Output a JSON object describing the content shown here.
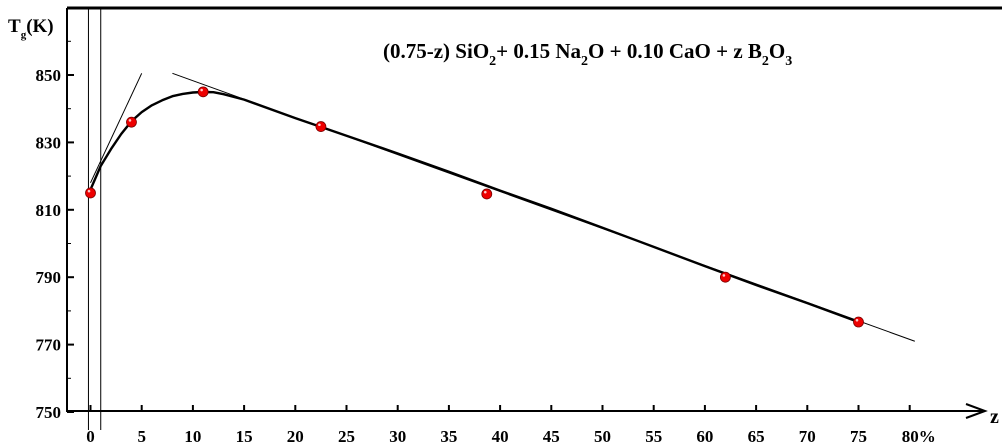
{
  "chart_data": {
    "type": "scatter",
    "title": {
      "prefix": "(0.75-z) SiO",
      "sub1": "2",
      "mid1": "+ 0.15 Na",
      "sub2": "2",
      "mid2": "O + 0.10 CaO + z B",
      "sub3": "2",
      "mid3": "O",
      "sub4": "3"
    },
    "ylabel": {
      "main": "T",
      "sub": "g",
      "unit": "(K)"
    },
    "xlabel": "z",
    "x_ticks": [
      "0",
      "5",
      "10",
      "15",
      "20",
      "25",
      "30",
      "35",
      "40",
      "45",
      "50",
      "55",
      "60",
      "65",
      "70",
      "75",
      "80%"
    ],
    "y_ticks": [
      "750",
      "770",
      "790",
      "810",
      "830",
      "850"
    ],
    "xlim": [
      -1,
      85
    ],
    "ylim": [
      750,
      870
    ],
    "points": [
      {
        "x": 0,
        "y": 815
      },
      {
        "x": 4,
        "y": 836
      },
      {
        "x": 11,
        "y": 845
      },
      {
        "x": 22.5,
        "y": 834.7
      },
      {
        "x": 38.7,
        "y": 814.7
      },
      {
        "x": 62,
        "y": 790
      },
      {
        "x": 75,
        "y": 776.7
      }
    ],
    "fit_curve": [
      [
        0,
        816
      ],
      [
        1,
        823
      ],
      [
        2,
        828
      ],
      [
        3,
        832.5
      ],
      [
        4,
        836.3
      ],
      [
        5,
        839
      ],
      [
        6,
        841
      ],
      [
        7,
        842.5
      ],
      [
        8,
        843.7
      ],
      [
        9,
        844.4
      ],
      [
        10,
        844.8
      ],
      [
        11,
        844.95
      ],
      [
        12,
        844.9
      ],
      [
        13,
        844.3
      ],
      [
        15,
        842.7
      ],
      [
        20,
        837.2
      ],
      [
        25,
        832
      ],
      [
        30,
        826.7
      ],
      [
        35,
        821.3
      ],
      [
        40,
        815.7
      ],
      [
        45,
        810.3
      ],
      [
        50,
        804.7
      ],
      [
        55,
        799
      ],
      [
        60,
        793.3
      ],
      [
        65,
        787.7
      ],
      [
        70,
        782.3
      ],
      [
        75,
        776.7
      ]
    ],
    "tangent_lines": [
      {
        "from": [
          0,
          818
        ],
        "to": [
          5,
          850.5
        ]
      },
      {
        "from": [
          8,
          850.5
        ],
        "to": [
          80.5,
          771
        ]
      }
    ],
    "vertical_lines_x": [
      -0.2,
      1.0
    ],
    "grid": false,
    "legend": "none",
    "colors": {
      "points": "#ee0000",
      "line": "#000000",
      "background": "#ffffff"
    }
  }
}
